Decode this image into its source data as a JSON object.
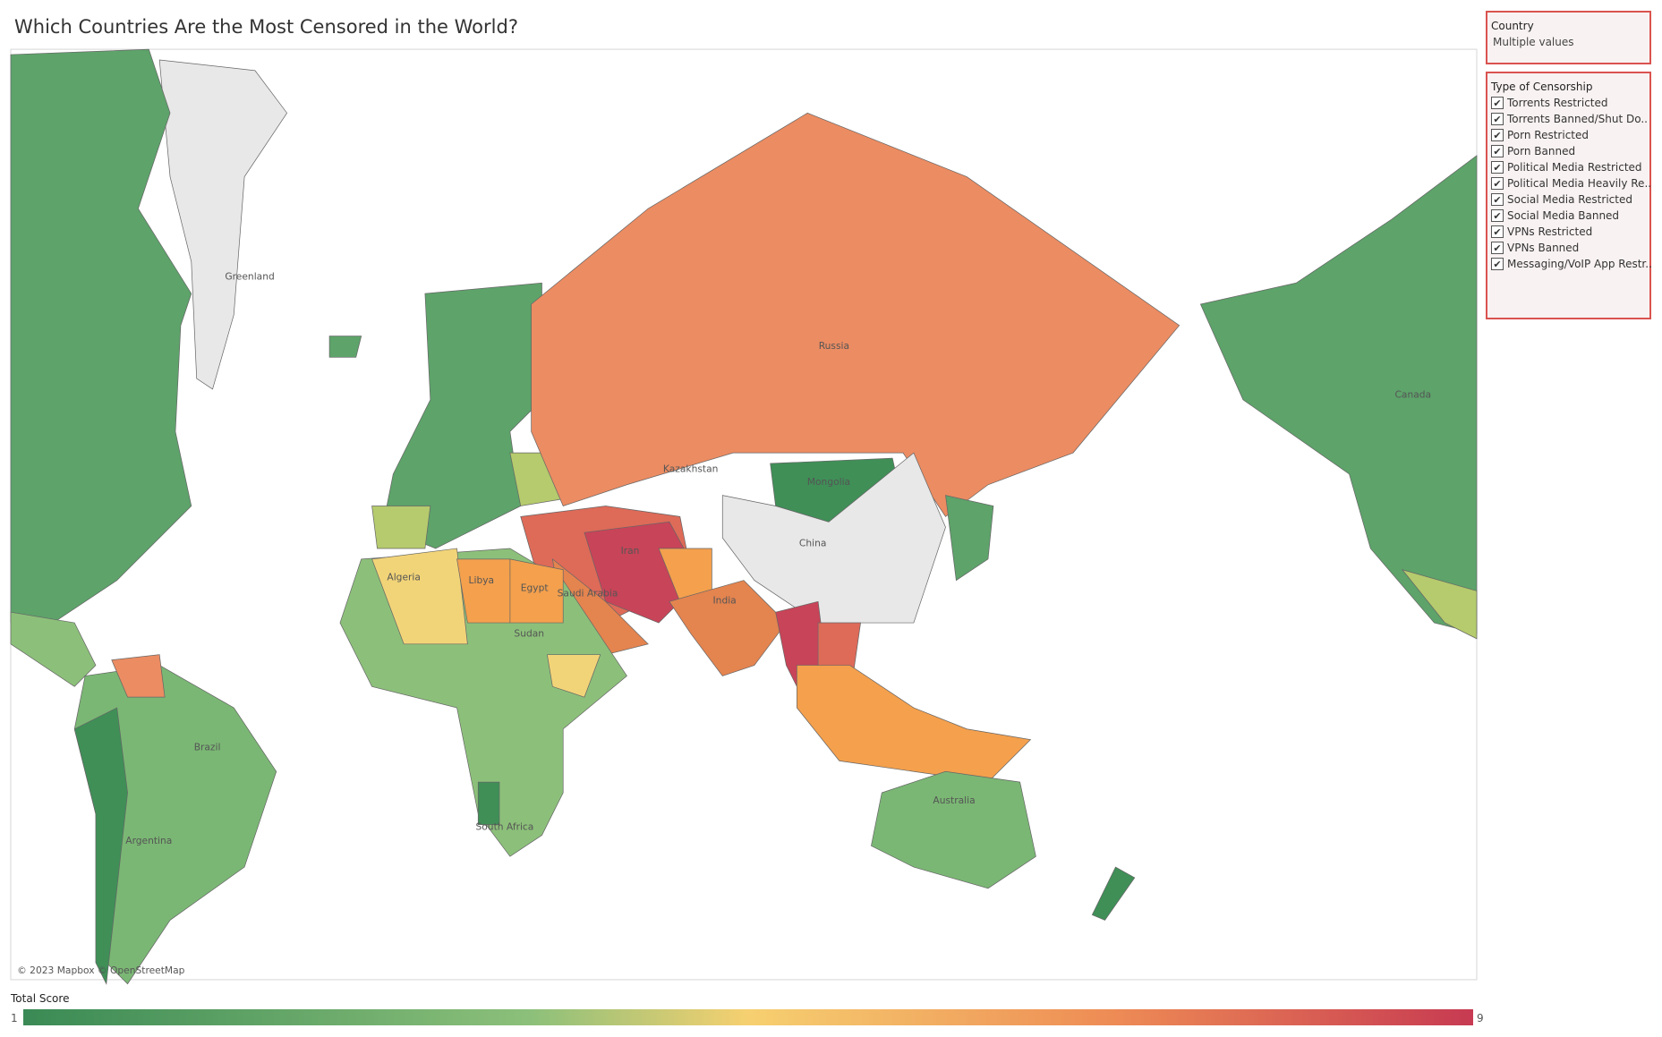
{
  "title": "Which Countries Are the Most Censored in the World?",
  "country_filter": {
    "title": "Country",
    "value": "Multiple values"
  },
  "censorship_filter": {
    "title": "Type of Censorship",
    "items": [
      "Torrents Restricted",
      "Torrents Banned/Shut Do..",
      "Porn Restricted",
      "Porn Banned",
      "Political Media Restricted",
      "Political Media Heavily Re..",
      "Social Media Restricted",
      "Social Media Banned",
      "VPNs Restricted",
      "VPNs Banned",
      "Messaging/VoIP App Restr.."
    ]
  },
  "map": {
    "attribution": "© 2023 Mapbox © OpenStreetMap",
    "labels": [
      "Greenland",
      "Russia",
      "Kazakhstan",
      "Mongolia",
      "China",
      "Canada",
      "Brazil",
      "Argentina",
      "Australia",
      "Iran",
      "Algeria",
      "Libya",
      "Egypt",
      "Saudi Arabia",
      "India",
      "Sudan",
      "South Africa"
    ]
  },
  "legend": {
    "title": "Total Score",
    "range": [
      1,
      9
    ]
  }
}
